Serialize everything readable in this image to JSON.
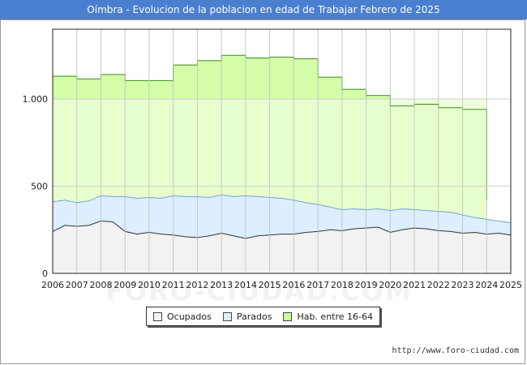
{
  "page": {
    "title": "Oímbra - Evolucion de la poblacion en edad de Trabajar Febrero de 2025",
    "source_url": "http://www.foro-ciudad.com",
    "watermark": "FORO-CIUDAD.COM"
  },
  "legend": {
    "ocupados": "Ocupados",
    "parados": "Parados",
    "hab": "Hab. entre 16-64"
  },
  "colors": {
    "ocupados_fill": "#f2f2f2",
    "ocupados_line": "#333333",
    "parados_fill": "#ddeeff",
    "parados_line": "#7aa0d6",
    "hab_fill": "#ccff99",
    "hab_line": "#3a8a1a",
    "title_bg": "#4a7fd0"
  },
  "chart_data": {
    "type": "area",
    "title": "Oímbra - Evolucion de la poblacion en edad de Trabajar Febrero de 2025",
    "xlabel": "",
    "ylabel": "",
    "xlim": [
      2006,
      2025
    ],
    "ylim": [
      0,
      1400
    ],
    "x_ticks": [
      "2006",
      "2007",
      "2008",
      "2009",
      "2010",
      "2011",
      "2012",
      "2013",
      "2014",
      "2015",
      "2016",
      "2017",
      "2018",
      "2019",
      "2020",
      "2021",
      "2022",
      "2023",
      "2024",
      "2025"
    ],
    "y_ticks": [
      0,
      500,
      1000
    ],
    "y_tick_labels": [
      "0",
      "500",
      "1.000"
    ],
    "grid": true,
    "legend_position": "bottom-center",
    "series": [
      {
        "name": "Hab. entre 16-64",
        "kind": "step",
        "x": [
          2006,
          2007,
          2008,
          2009,
          2010,
          2011,
          2012,
          2013,
          2014,
          2015,
          2016,
          2017,
          2018,
          2019,
          2020,
          2021,
          2022,
          2023,
          2024
        ],
        "values": [
          1130,
          1115,
          1140,
          1105,
          1105,
          1195,
          1220,
          1250,
          1235,
          1240,
          1230,
          1125,
          1055,
          1020,
          960,
          970,
          950,
          940,
          420
        ]
      },
      {
        "name": "Parados",
        "kind": "line",
        "x": [
          2006,
          2006.5,
          2007,
          2007.5,
          2008,
          2008.5,
          2009,
          2009.5,
          2010,
          2010.5,
          2011,
          2011.5,
          2012,
          2012.5,
          2013,
          2013.5,
          2014,
          2014.5,
          2015,
          2015.5,
          2016,
          2016.5,
          2017,
          2017.5,
          2018,
          2018.5,
          2019,
          2019.5,
          2020,
          2020.5,
          2021,
          2021.5,
          2022,
          2022.5,
          2023,
          2023.5,
          2024,
          2024.5,
          2025
        ],
        "values": [
          410,
          420,
          405,
          415,
          445,
          440,
          440,
          430,
          435,
          430,
          445,
          440,
          440,
          435,
          450,
          440,
          445,
          440,
          435,
          430,
          420,
          405,
          395,
          380,
          365,
          370,
          365,
          370,
          360,
          370,
          365,
          360,
          355,
          350,
          335,
          320,
          310,
          300,
          290
        ]
      },
      {
        "name": "Ocupados",
        "kind": "line",
        "x": [
          2006,
          2006.5,
          2007,
          2007.5,
          2008,
          2008.5,
          2009,
          2009.5,
          2010,
          2010.5,
          2011,
          2011.5,
          2012,
          2012.5,
          2013,
          2013.5,
          2014,
          2014.5,
          2015,
          2015.5,
          2016,
          2016.5,
          2017,
          2017.5,
          2018,
          2018.5,
          2019,
          2019.5,
          2020,
          2020.5,
          2021,
          2021.5,
          2022,
          2022.5,
          2023,
          2023.5,
          2024,
          2024.5,
          2025
        ],
        "values": [
          240,
          275,
          270,
          275,
          300,
          295,
          240,
          225,
          235,
          225,
          220,
          210,
          205,
          215,
          230,
          215,
          200,
          215,
          220,
          225,
          225,
          235,
          240,
          250,
          245,
          255,
          260,
          265,
          235,
          250,
          260,
          255,
          245,
          240,
          230,
          235,
          225,
          230,
          220
        ]
      }
    ]
  }
}
